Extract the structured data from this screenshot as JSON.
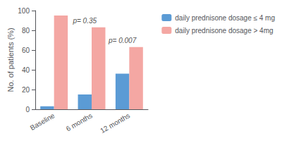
{
  "chart_data": {
    "type": "bar",
    "categories": [
      "Baseline",
      "6 months",
      "12 months"
    ],
    "series": [
      {
        "name": "daily prednisone dosage ≤ 4 mg",
        "color": "#5B9BD5",
        "values": [
          3,
          15,
          36
        ]
      },
      {
        "name": "daily prednisone dosage > 4mg",
        "color": "#F4A7A3",
        "values": [
          95,
          83,
          63
        ]
      }
    ],
    "ylabel": "No. of patients (%)",
    "ylim": [
      0,
      100
    ],
    "yticks": [
      0,
      20,
      40,
      60,
      80,
      100
    ],
    "grid": false,
    "legend": "right",
    "annotations": [
      {
        "category": "6 months",
        "text": "p= 0.35"
      },
      {
        "category": "12 months",
        "text": "p= 0.007"
      }
    ]
  }
}
